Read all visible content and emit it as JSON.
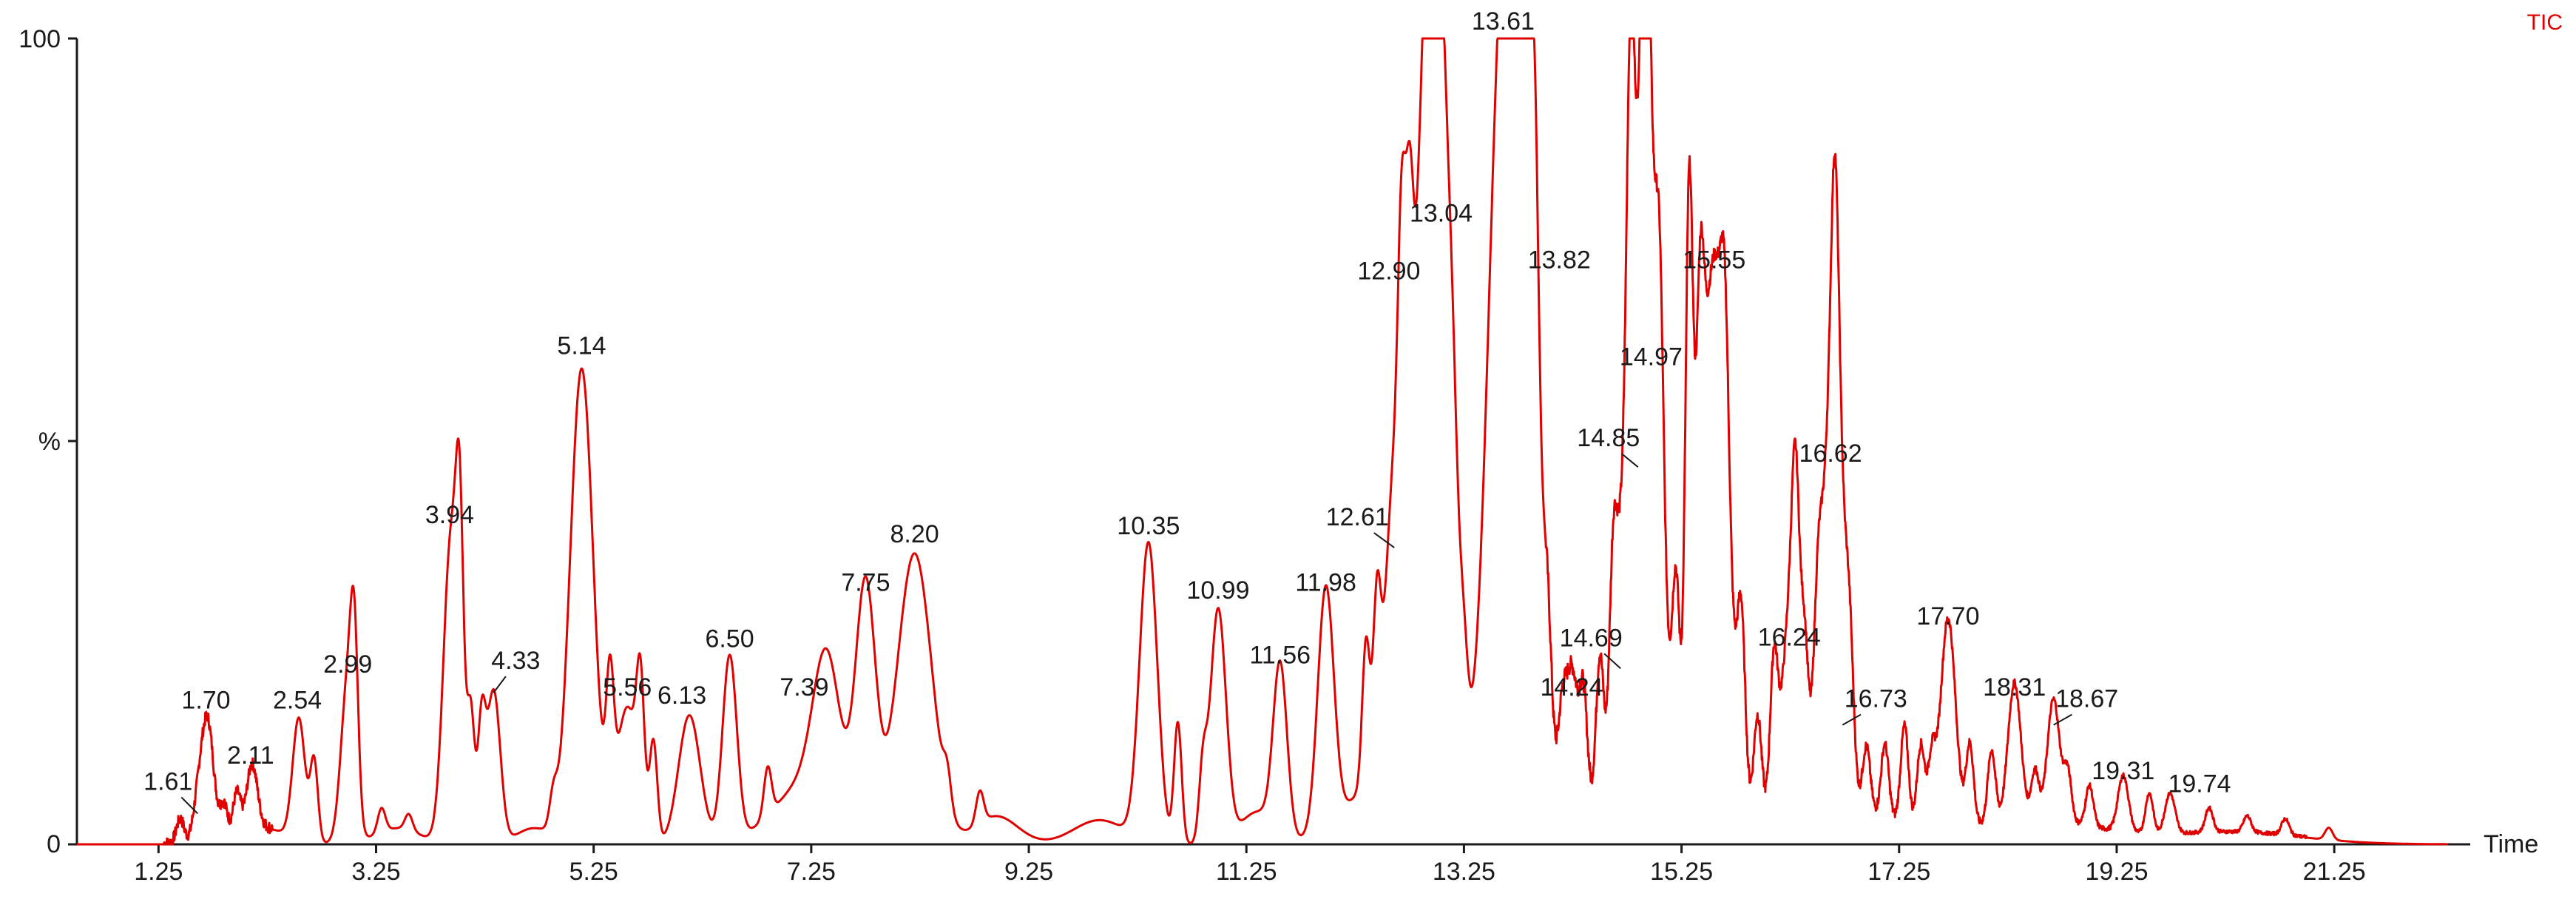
{
  "chart_data": {
    "type": "line",
    "trace_label": "TIC",
    "xlabel": "Time",
    "ylabel": "%",
    "xlim": [
      0.5,
      22.5
    ],
    "ylim": [
      0,
      100
    ],
    "x_ticks": [
      "1.25",
      "3.25",
      "5.25",
      "7.25",
      "9.25",
      "11.25",
      "13.25",
      "15.25",
      "17.25",
      "19.25",
      "21.25"
    ],
    "y_tick_labels": [
      "100",
      "%",
      "0"
    ],
    "color": "#e00000",
    "peaks": [
      {
        "x": 1.61,
        "y": 4,
        "label": "1.61"
      },
      {
        "x": 1.7,
        "y": 15,
        "label": "1.70"
      },
      {
        "x": 2.11,
        "y": 8,
        "label": "2.11"
      },
      {
        "x": 2.54,
        "y": 15,
        "label": "2.54"
      },
      {
        "x": 2.99,
        "y": 20,
        "label": "2.99"
      },
      {
        "x": 3.94,
        "y": 38,
        "label": "3.94"
      },
      {
        "x": 4.33,
        "y": 19,
        "label": "4.33"
      },
      {
        "x": 5.14,
        "y": 59,
        "label": "5.14"
      },
      {
        "x": 5.56,
        "y": 17,
        "label": "5.56"
      },
      {
        "x": 6.13,
        "y": 16,
        "label": "6.13"
      },
      {
        "x": 6.5,
        "y": 23,
        "label": "6.50"
      },
      {
        "x": 7.39,
        "y": 17,
        "label": "7.39"
      },
      {
        "x": 7.75,
        "y": 30,
        "label": "7.75"
      },
      {
        "x": 8.2,
        "y": 36,
        "label": "8.20"
      },
      {
        "x": 10.35,
        "y": 37,
        "label": "10.35"
      },
      {
        "x": 10.99,
        "y": 29,
        "label": "10.99"
      },
      {
        "x": 11.56,
        "y": 21,
        "label": "11.56"
      },
      {
        "x": 11.98,
        "y": 30,
        "label": "11.98"
      },
      {
        "x": 12.61,
        "y": 37,
        "label": "12.61"
      },
      {
        "x": 12.9,
        "y": 69,
        "label": "12.90"
      },
      {
        "x": 13.04,
        "y": 76,
        "label": "13.04"
      },
      {
        "x": 13.61,
        "y": 100,
        "label": "13.61"
      },
      {
        "x": 13.82,
        "y": 70,
        "label": "13.82"
      },
      {
        "x": 14.24,
        "y": 17,
        "label": "14.24"
      },
      {
        "x": 14.69,
        "y": 22,
        "label": "14.69"
      },
      {
        "x": 14.85,
        "y": 47,
        "label": "14.85"
      },
      {
        "x": 14.97,
        "y": 58,
        "label": "14.97"
      },
      {
        "x": 15.55,
        "y": 70,
        "label": "15.55"
      },
      {
        "x": 16.24,
        "y": 23,
        "label": "16.24"
      },
      {
        "x": 16.62,
        "y": 46,
        "label": "16.62"
      },
      {
        "x": 16.73,
        "y": 15,
        "label": "16.73"
      },
      {
        "x": 17.7,
        "y": 26,
        "label": "17.70"
      },
      {
        "x": 18.31,
        "y": 17,
        "label": "18.31"
      },
      {
        "x": 18.67,
        "y": 15,
        "label": "18.67"
      },
      {
        "x": 19.31,
        "y": 7,
        "label": "19.31"
      },
      {
        "x": 19.74,
        "y": 5,
        "label": "19.74"
      }
    ],
    "unlabeled_peaks": [
      {
        "x": 1.45,
        "y": 3
      },
      {
        "x": 1.85,
        "y": 4
      },
      {
        "x": 1.97,
        "y": 5
      },
      {
        "x": 2.68,
        "y": 10
      },
      {
        "x": 3.05,
        "y": 18
      },
      {
        "x": 3.3,
        "y": 3
      },
      {
        "x": 3.55,
        "y": 2
      },
      {
        "x": 4.02,
        "y": 28
      },
      {
        "x": 4.12,
        "y": 16
      },
      {
        "x": 4.22,
        "y": 14
      },
      {
        "x": 4.88,
        "y": 4
      },
      {
        "x": 5.4,
        "y": 16
      },
      {
        "x": 5.68,
        "y": 15
      },
      {
        "x": 5.8,
        "y": 12
      },
      {
        "x": 6.85,
        "y": 6
      },
      {
        "x": 8.5,
        "y": 4
      },
      {
        "x": 8.8,
        "y": 4
      },
      {
        "x": 10.62,
        "y": 15
      },
      {
        "x": 10.85,
        "y": 8
      },
      {
        "x": 12.35,
        "y": 18
      },
      {
        "x": 12.45,
        "y": 20
      },
      {
        "x": 12.68,
        "y": 35
      },
      {
        "x": 12.75,
        "y": 33
      },
      {
        "x": 13.15,
        "y": 6
      },
      {
        "x": 13.25,
        "y": 6
      },
      {
        "x": 13.72,
        "y": 30
      },
      {
        "x": 13.9,
        "y": 28
      },
      {
        "x": 14.02,
        "y": 12
      },
      {
        "x": 14.15,
        "y": 8
      },
      {
        "x": 14.35,
        "y": 12
      },
      {
        "x": 14.5,
        "y": 18
      },
      {
        "x": 14.62,
        "y": 20
      },
      {
        "x": 14.78,
        "y": 45
      },
      {
        "x": 14.92,
        "y": 40
      },
      {
        "x": 15.05,
        "y": 25
      },
      {
        "x": 15.2,
        "y": 25
      },
      {
        "x": 15.32,
        "y": 70
      },
      {
        "x": 15.42,
        "y": 33
      },
      {
        "x": 15.65,
        "y": 20
      },
      {
        "x": 15.8,
        "y": 20
      },
      {
        "x": 15.95,
        "y": 12
      },
      {
        "x": 16.1,
        "y": 18
      },
      {
        "x": 16.3,
        "y": 28
      },
      {
        "x": 16.38,
        "y": 18
      },
      {
        "x": 16.5,
        "y": 12
      },
      {
        "x": 16.66,
        "y": 32
      },
      {
        "x": 16.8,
        "y": 12
      },
      {
        "x": 16.95,
        "y": 8
      },
      {
        "x": 17.12,
        "y": 9
      },
      {
        "x": 17.3,
        "y": 12
      },
      {
        "x": 17.45,
        "y": 10
      },
      {
        "x": 17.55,
        "y": 8
      },
      {
        "x": 17.9,
        "y": 10
      },
      {
        "x": 18.1,
        "y": 9
      },
      {
        "x": 18.5,
        "y": 6
      },
      {
        "x": 18.8,
        "y": 6
      },
      {
        "x": 19.0,
        "y": 5
      },
      {
        "x": 19.55,
        "y": 5
      },
      {
        "x": 20.1,
        "y": 3
      },
      {
        "x": 20.45,
        "y": 2
      },
      {
        "x": 20.8,
        "y": 2
      },
      {
        "x": 21.2,
        "y": 1.5
      }
    ],
    "broad_features": [
      {
        "x": 2.2,
        "y": 2,
        "w": 0.6
      },
      {
        "x": 3.45,
        "y": 2,
        "w": 0.5
      },
      {
        "x": 4.7,
        "y": 2,
        "w": 0.4
      },
      {
        "x": 7.25,
        "y": 8,
        "w": 0.8
      },
      {
        "x": 8.95,
        "y": 3.5,
        "w": 0.5
      },
      {
        "x": 9.9,
        "y": 3,
        "w": 0.6
      },
      {
        "x": 11.35,
        "y": 4,
        "w": 0.4
      },
      {
        "x": 12.5,
        "y": 8,
        "w": 0.8
      },
      {
        "x": 14.5,
        "y": 5,
        "w": 1.4
      },
      {
        "x": 16.5,
        "y": 5,
        "w": 1.6
      },
      {
        "x": 18.5,
        "y": 3,
        "w": 1.4
      },
      {
        "x": 20.3,
        "y": 1.5,
        "w": 1.6
      }
    ]
  }
}
